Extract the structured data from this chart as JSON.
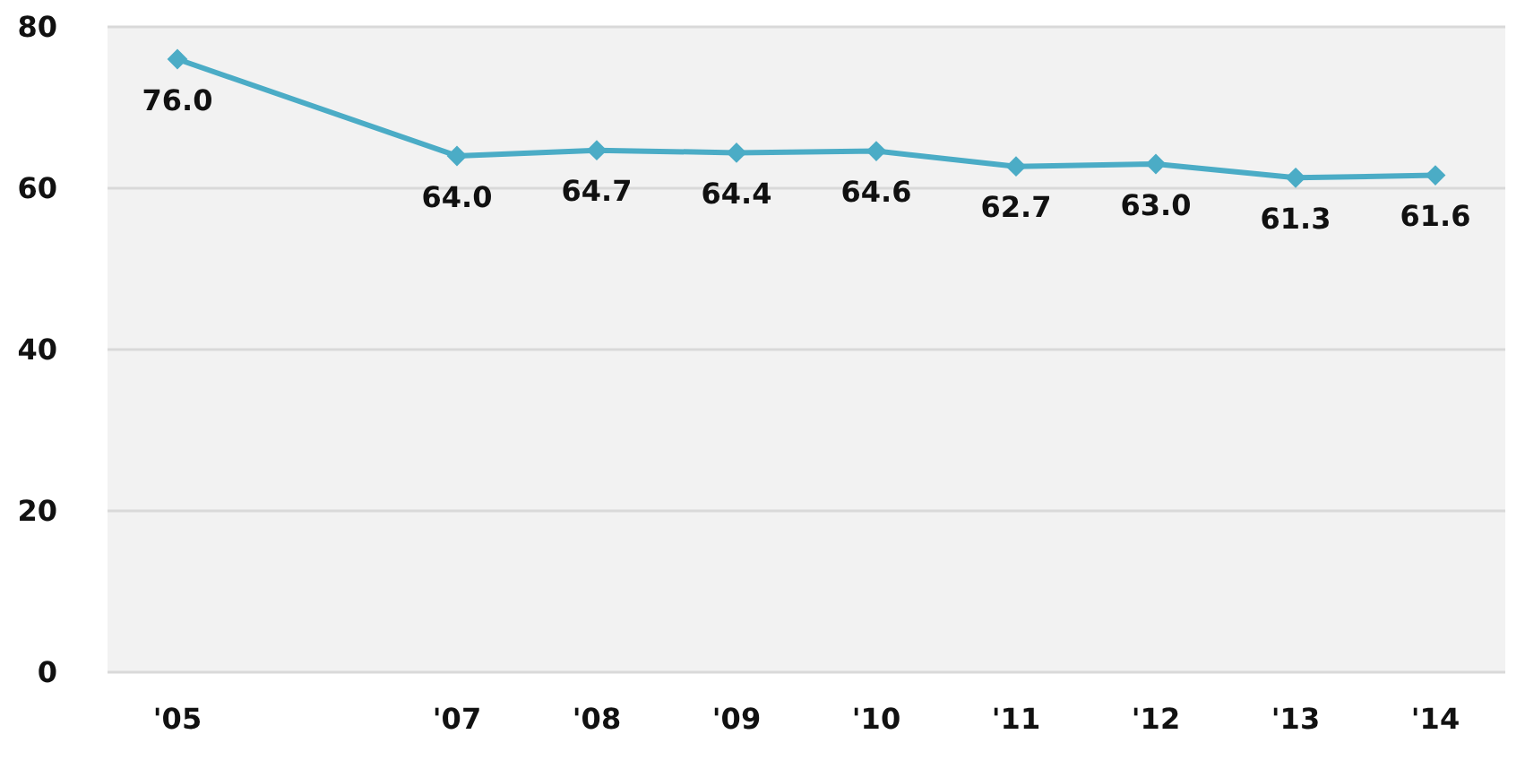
{
  "chart_data": {
    "type": "line",
    "x": [
      2005,
      2007,
      2008,
      2009,
      2010,
      2011,
      2012,
      2013,
      2014
    ],
    "series": [
      {
        "color": "#4bacc6",
        "values": [
          76.0,
          64.0,
          64.7,
          64.4,
          64.6,
          62.7,
          63.0,
          61.3,
          61.6
        ],
        "value_labels": [
          "76.0",
          "64.0",
          "64.7",
          "64.4",
          "64.6",
          "62.7",
          "63.0",
          "61.3",
          "61.6"
        ]
      }
    ],
    "xlim": [
      2004.5,
      2014.5
    ],
    "xticks": [
      {
        "value": 2005,
        "label": "'05"
      },
      {
        "value": 2007,
        "label": "'07"
      },
      {
        "value": 2008,
        "label": "'08"
      },
      {
        "value": 2009,
        "label": "'09"
      },
      {
        "value": 2010,
        "label": "'10"
      },
      {
        "value": 2011,
        "label": "'11"
      },
      {
        "value": 2012,
        "label": "'12"
      },
      {
        "value": 2013,
        "label": "'13"
      },
      {
        "value": 2014,
        "label": "'14"
      }
    ],
    "ylim": [
      0,
      80
    ],
    "yticks": [
      0,
      20,
      40,
      60,
      80
    ],
    "grid": "y",
    "legend": false,
    "marker": "diamond",
    "line_style": "solid"
  }
}
